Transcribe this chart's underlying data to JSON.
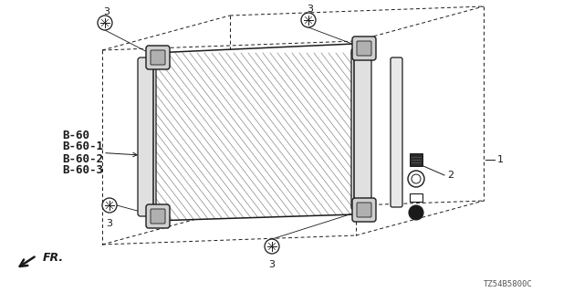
{
  "bg_color": "#ffffff",
  "line_color": "#1a1a1a",
  "gray_light": "#cccccc",
  "gray_mid": "#999999",
  "bold_labels": [
    "B-60",
    "B-60-1",
    "B-60-2",
    "B-60-3"
  ],
  "label_1": "1",
  "label_2": "2",
  "label_3": "3",
  "fr_label": "FR.",
  "part_code": "TZ54B5800C",
  "annotation_fontsize": 8,
  "bold_fontsize": 9
}
